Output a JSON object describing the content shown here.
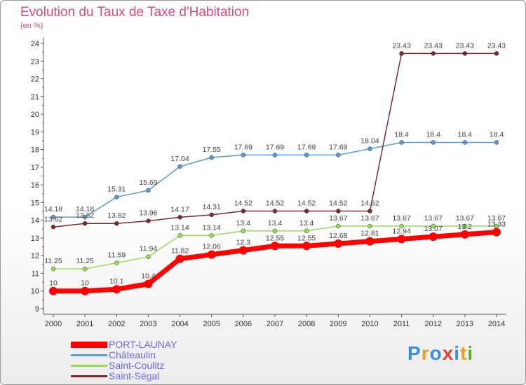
{
  "header": {
    "title": "Evolution du Taux de Taxe d'Habitation",
    "unit": "(en %)"
  },
  "logo": {
    "text": "Proxiti"
  },
  "chart_data": {
    "type": "line",
    "title": "Evolution du Taux de Taxe d'Habitation",
    "ylabel": "(en %)",
    "xlabel": "",
    "x": [
      "2000",
      "2001",
      "2002",
      "2003",
      "2004",
      "2005",
      "2006",
      "2007",
      "2008",
      "2009",
      "2010",
      "2011",
      "2012",
      "2013",
      "2014"
    ],
    "ylim": [
      9,
      24
    ],
    "yticks": [
      "9",
      "10",
      "11",
      "12",
      "13",
      "14",
      "15",
      "16",
      "17",
      "18",
      "19",
      "20",
      "21",
      "22",
      "23",
      "24"
    ],
    "grid": false,
    "legend_position": "bottom-left",
    "series": [
      {
        "name": "PORT-LAUNAY",
        "color": "#ff0000",
        "values": [
          10,
          10,
          10.1,
          10.4,
          11.82,
          12.06,
          12.3,
          12.55,
          12.55,
          12.68,
          12.81,
          12.94,
          13.07,
          13.2,
          13.33
        ],
        "labels": [
          "10",
          "10",
          "10.1",
          "10.4",
          "11.82",
          "12.06",
          "12.3",
          "12.55",
          "12.55",
          "12.68",
          "12.81",
          "12.94",
          "13.07",
          "13.2",
          "13.33"
        ]
      },
      {
        "name": "Châteaulin",
        "color": "#5a9bd6",
        "values": [
          14.18,
          14.18,
          15.31,
          15.69,
          17.04,
          17.55,
          17.69,
          17.69,
          17.69,
          17.69,
          18.04,
          18.4,
          18.4,
          18.4,
          18.4
        ],
        "labels": [
          "14.18",
          "14.18",
          "15.31",
          "15.69",
          "17.04",
          "17.55",
          "17.69",
          "17.69",
          "17.69",
          "17.69",
          "18.04",
          "18.4",
          "18.4",
          "18.4",
          "18.4"
        ]
      },
      {
        "name": "Saint-Coulitz",
        "color": "#99dd55",
        "values": [
          11.25,
          11.25,
          11.59,
          11.94,
          13.14,
          13.14,
          13.4,
          13.4,
          13.4,
          13.67,
          13.67,
          13.67,
          13.67,
          13.67,
          13.67
        ],
        "labels": [
          "11.25",
          "11.25",
          "11.59",
          "11.94",
          "13.14",
          "13.14",
          "13.4",
          "13.4",
          "13.4",
          "13.67",
          "13.67",
          "13.67",
          "13.67",
          "13.67",
          "13.67"
        ]
      },
      {
        "name": "Saint-Ségal",
        "color": "#7a2a2a",
        "values": [
          13.62,
          13.82,
          13.82,
          13.96,
          14.17,
          14.31,
          14.52,
          14.52,
          14.52,
          14.52,
          14.52,
          23.43,
          23.43,
          23.43,
          23.43
        ],
        "labels": [
          "13.62",
          "13.82",
          "13.82",
          "13.96",
          "14.17",
          "14.31",
          "14.52",
          "14.52",
          "14.52",
          "14.52",
          "14.52",
          "23.43",
          "23.43",
          "23.43",
          "23.43"
        ]
      }
    ]
  }
}
